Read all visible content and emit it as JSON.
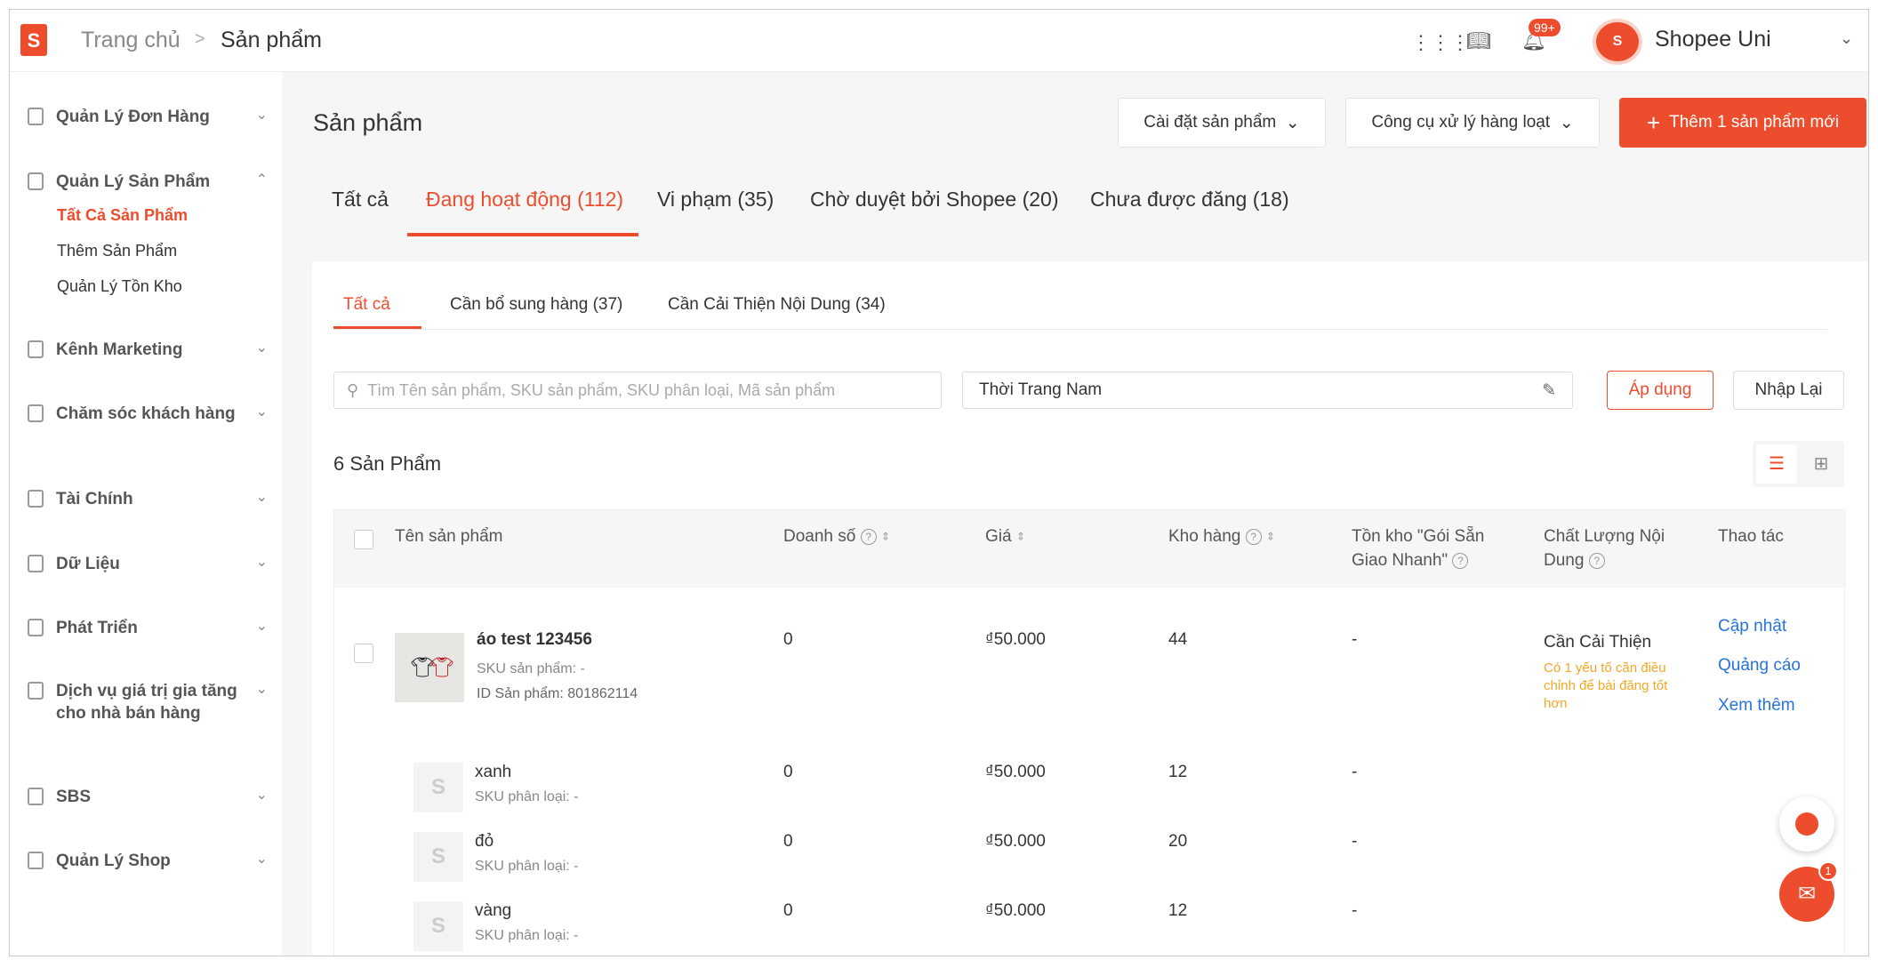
{
  "header": {
    "breadcrumb_home": "Trang chủ",
    "breadcrumb_sep": ">",
    "breadcrumb_current": "Sản phẩm",
    "notif_badge": "99+",
    "shop_name": "Shopee Uni"
  },
  "sidebar": {
    "items": [
      {
        "label": "Quản Lý Đơn Hàng"
      },
      {
        "label": "Quản Lý Sản Phẩm",
        "sub": [
          "Tất Cả Sản Phẩm",
          "Thêm Sản Phẩm",
          "Quản Lý Tồn Kho"
        ]
      },
      {
        "label": "Kênh Marketing"
      },
      {
        "label": "Chăm sóc khách hàng"
      },
      {
        "label": "Tài Chính"
      },
      {
        "label": "Dữ Liệu"
      },
      {
        "label": "Phát Triển"
      },
      {
        "label": "Dịch vụ giá trị gia tăng cho nhà bán hàng"
      },
      {
        "label": "SBS"
      },
      {
        "label": "Quản Lý Shop"
      }
    ]
  },
  "page": {
    "title": "Sản phẩm",
    "settings_btn": "Cài đặt sản phẩm",
    "bulk_btn": "Công cụ xử lý hàng loạt",
    "add_btn": "Thêm 1 sản phẩm mới",
    "tabs": [
      "Tất cả",
      "Đang hoạt động (112)",
      "Vi phạm (35)",
      "Chờ duyệt bởi Shopee (20)",
      "Chưa được đăng (18)"
    ],
    "subtabs": [
      "Tất cả",
      "Cần bổ sung hàng (37)",
      "Cần Cải Thiện Nội Dung (34)"
    ],
    "search_placeholder": "Tìm Tên sản phẩm, SKU sản phẩm, SKU phân loại, Mã sản phẩm",
    "category_value": "Thời Trang Nam",
    "apply_btn": "Áp dụng",
    "reset_btn": "Nhập Lại",
    "count": "6 Sản Phẩm"
  },
  "table": {
    "headers": [
      "Tên sản phẩm",
      "Doanh số",
      "Giá",
      "Kho hàng",
      "Tồn kho \"Gói Sẵn Giao Nhanh\"",
      "Chất Lượng Nội Dung",
      "Thao tác"
    ],
    "product": {
      "name": "áo test 123456",
      "sku": "SKU sản phẩm: -",
      "id": "ID Sản phẩm: 801862114",
      "sales": "0",
      "price": "₫50.000",
      "stock": "44",
      "fast_stock": "-",
      "quality": "Cần Cải Thiện",
      "quality_note": "Có 1 yếu tố cần điều chỉnh để bài đăng tốt hơn",
      "actions": [
        "Cập nhật",
        "Quảng cáo",
        "Xem thêm"
      ]
    },
    "variants": [
      {
        "name": "xanh",
        "sku": "SKU phân loại: -",
        "sales": "0",
        "price": "₫50.000",
        "stock": "12",
        "fast_stock": "-"
      },
      {
        "name": "đỏ",
        "sku": "SKU phân loại: -",
        "sales": "0",
        "price": "₫50.000",
        "stock": "20",
        "fast_stock": "-"
      },
      {
        "name": "vàng",
        "sku": "SKU phân loại: -",
        "sales": "0",
        "price": "₫50.000",
        "stock": "12",
        "fast_stock": "-"
      }
    ]
  },
  "chat_badge": "1",
  "colors": {
    "brand": "#ee4d2d",
    "link": "#2673dd",
    "warning": "#f5a623"
  }
}
